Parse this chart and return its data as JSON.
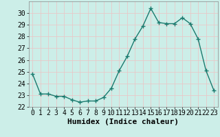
{
  "x": [
    0,
    1,
    2,
    3,
    4,
    5,
    6,
    7,
    8,
    9,
    10,
    11,
    12,
    13,
    14,
    15,
    16,
    17,
    18,
    19,
    20,
    21,
    22,
    23
  ],
  "y": [
    24.8,
    23.1,
    23.1,
    22.9,
    22.9,
    22.6,
    22.4,
    22.5,
    22.5,
    22.8,
    23.6,
    25.1,
    26.3,
    27.8,
    28.9,
    30.4,
    29.2,
    29.1,
    29.1,
    29.6,
    29.1,
    27.8,
    25.1,
    23.4
  ],
  "line_color": "#1a7a6e",
  "marker": "+",
  "marker_size": 4,
  "xlabel": "Humidex (Indice chaleur)",
  "xlim": [
    -0.5,
    23.5
  ],
  "ylim": [
    22,
    31
  ],
  "yticks": [
    22,
    23,
    24,
    25,
    26,
    27,
    28,
    29,
    30
  ],
  "xticks": [
    0,
    1,
    2,
    3,
    4,
    5,
    6,
    7,
    8,
    9,
    10,
    11,
    12,
    13,
    14,
    15,
    16,
    17,
    18,
    19,
    20,
    21,
    22,
    23
  ],
  "background_color": "#cceee8",
  "grid_color": "#e8c8c8",
  "tick_fontsize": 7,
  "xlabel_fontsize": 8
}
